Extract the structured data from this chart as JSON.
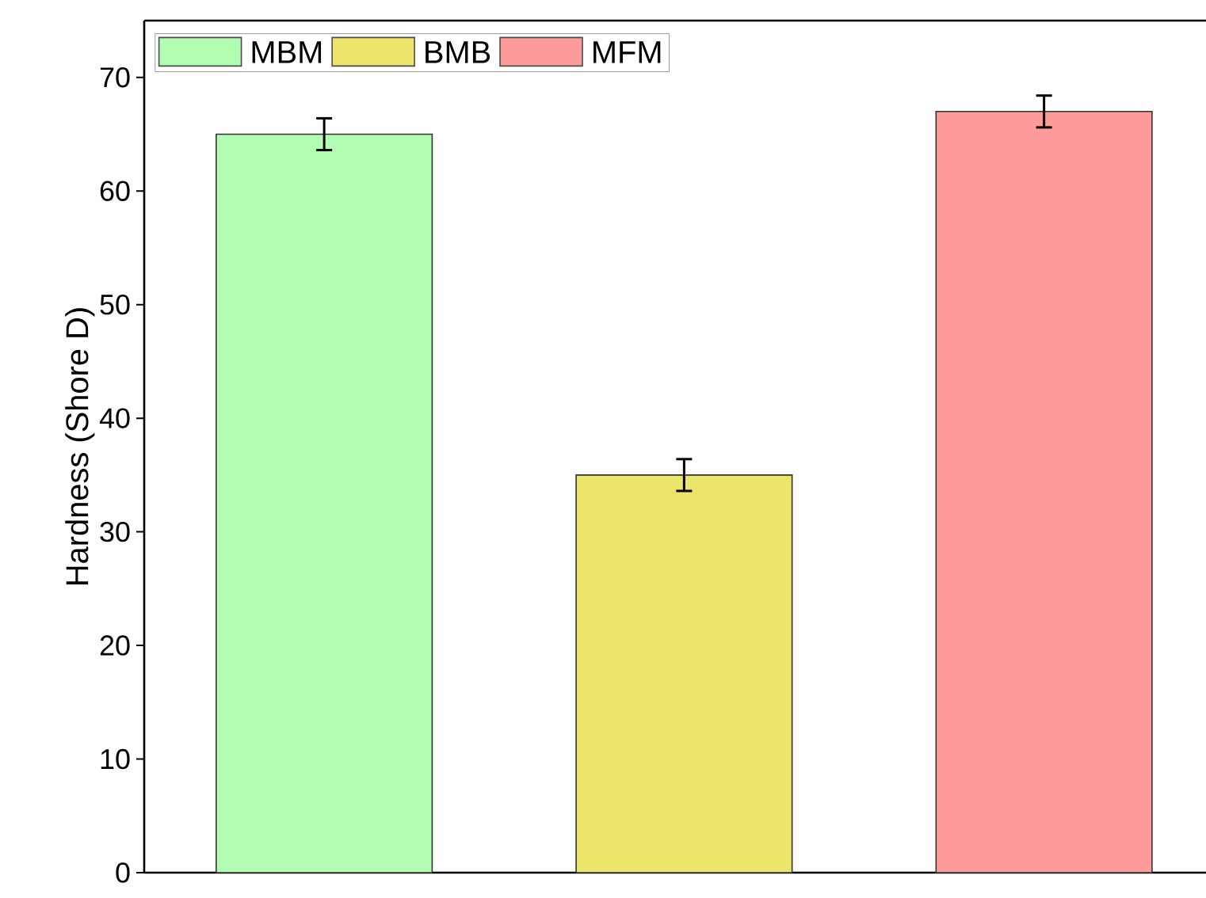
{
  "chart_data": {
    "type": "bar",
    "ylabel": "Hardness (Shore D)",
    "categories": [
      null,
      null,
      null
    ],
    "series": [
      {
        "name": "MBM",
        "color": "#b3fcb3",
        "values": [
          65,
          null,
          null
        ],
        "errors": [
          1.4,
          null,
          null
        ]
      },
      {
        "name": "BMB",
        "color": "#ece56c",
        "values": [
          null,
          35,
          null
        ],
        "errors": [
          null,
          1.4,
          null
        ]
      },
      {
        "name": "MFM",
        "color": "#fd9a9a",
        "values": [
          null,
          null,
          67
        ],
        "errors": [
          null,
          null,
          1.4
        ]
      }
    ],
    "ylim": [
      0,
      75
    ],
    "yticks": [
      0,
      10,
      20,
      30,
      40,
      50,
      60,
      70
    ],
    "legend": "top left",
    "grid": false
  }
}
